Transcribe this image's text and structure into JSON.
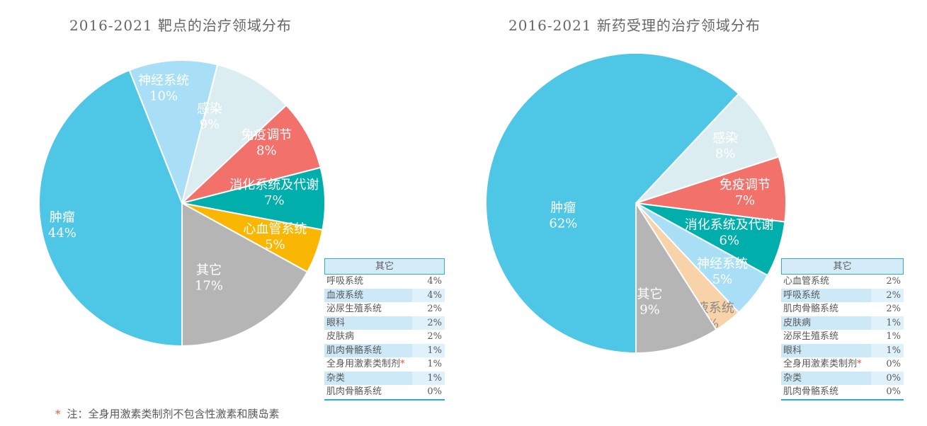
{
  "footnote": {
    "marker": "*",
    "text": "注：全身用激素类制剂不包含性激素和胰岛素"
  },
  "colors": {
    "accent_blue": "#29ABE2",
    "table_header_fill": "#D6EBF8",
    "table_alt_row": "#CDE8F7",
    "table_alt_value_cell": "#DFF1FB",
    "title_text": "#666666",
    "body_text": "#595959",
    "note_red": "#F0503C",
    "slice_oncology": "#4EC6E5",
    "slice_nervous": "#A9DFF6",
    "slice_infection": "#DCEDF2",
    "slice_immune": "#F3716B",
    "slice_digestive": "#00AFAB",
    "slice_cardio": "#F9B603",
    "slice_blood": "#F8D2A8",
    "slice_other": "#B5B5B5"
  },
  "chart_data": [
    {
      "type": "pie",
      "title": "2016-2021 靶点的治疗领域分布",
      "unit": "%",
      "start_angle_deg": 180,
      "direction": "clockwise",
      "slices": [
        {
          "label": "肿瘤",
          "value": 44,
          "color": "#4EC6E5",
          "label_color": "#FFFFFF",
          "label_angle_deg": 260,
          "label_r": 0.85
        },
        {
          "label": "神经系统",
          "value": 10,
          "color": "#A9DFF6",
          "label_color": "#FFFFFF",
          "label_angle_deg": 351,
          "label_r": 0.82
        },
        {
          "label": "感染",
          "value": 9,
          "color": "#DCEDF2",
          "label_color": "#FFFFFF",
          "label_angle_deg": 17.5,
          "label_r": 0.64
        },
        {
          "label": "免疫调节",
          "value": 8,
          "color": "#F3716B",
          "label_color": "#FFFFFF",
          "label_angle_deg": 54,
          "label_r": 0.73
        },
        {
          "label": "消化系统及代谢",
          "value": 7,
          "color": "#00AFAB",
          "label_color": "#FFFFFF",
          "label_angle_deg": 83,
          "label_r": 0.65
        },
        {
          "label": "心血管系统",
          "value": 5,
          "color": "#F9B603",
          "label_color": "#FFFFFF",
          "label_angle_deg": 109.5,
          "label_r": 0.69
        },
        {
          "label": "其它",
          "value": 17,
          "color": "#B5B5B5",
          "label_color": "#FFFFFF",
          "label_angle_deg": 160,
          "label_r": 0.55
        }
      ],
      "others_table": {
        "header": "其它",
        "rows": [
          {
            "label": "呼吸系统",
            "value": 4,
            "starred": false
          },
          {
            "label": "血液系统",
            "value": 4,
            "starred": false
          },
          {
            "label": "泌尿生殖系统",
            "value": 2,
            "starred": false
          },
          {
            "label": "眼科",
            "value": 2,
            "starred": false
          },
          {
            "label": "皮肤病",
            "value": 2,
            "starred": false
          },
          {
            "label": "肌肉骨骼系统",
            "value": 1,
            "starred": false
          },
          {
            "label": "全身用激素类制剂",
            "value": 1,
            "starred": true
          },
          {
            "label": "杂类",
            "value": 1,
            "starred": false
          },
          {
            "label": "肌肉骨骼系统",
            "value": 0,
            "starred": false
          }
        ]
      }
    },
    {
      "type": "pie",
      "title": "2016-2021 新药受理的治疗领域分布",
      "unit": "%",
      "start_angle_deg": 180,
      "direction": "clockwise",
      "slices": [
        {
          "label": "肿瘤",
          "value": 62,
          "color": "#4EC6E5",
          "label_color": "#FFFFFF",
          "label_angle_deg": 261,
          "label_r": 0.49
        },
        {
          "label": "感染",
          "value": 8,
          "color": "#DCEDF2",
          "label_color": "#FFFFFF",
          "label_angle_deg": 57,
          "label_r": 0.71
        },
        {
          "label": "免疫调节",
          "value": 7,
          "color": "#F3716B",
          "label_color": "#FFFFFF",
          "label_angle_deg": 84,
          "label_r": 0.73
        },
        {
          "label": "消化系统及代谢",
          "value": 6,
          "color": "#00AFAB",
          "label_color": "#FFFFFF",
          "label_angle_deg": 107,
          "label_r": 0.65
        },
        {
          "label": "神经系统",
          "value": 5,
          "color": "#A9DFF6",
          "label_color": "#FFFFFF",
          "label_angle_deg": 128,
          "label_r": 0.73
        },
        {
          "label": "血液系统",
          "value": 3,
          "color": "#F8D2A8",
          "label_color": "#8A8A8A",
          "label_angle_deg": 147,
          "label_r": 0.89
        },
        {
          "label": "其它",
          "value": 9,
          "color": "#B5B5B5",
          "label_color": "#FFFFFF",
          "label_angle_deg": 172,
          "label_r": 0.66
        }
      ],
      "others_table": {
        "header": "其它",
        "rows": [
          {
            "label": "心血管系统",
            "value": 2,
            "starred": false
          },
          {
            "label": "呼吸系统",
            "value": 2,
            "starred": false
          },
          {
            "label": "肌肉骨骼系统",
            "value": 2,
            "starred": false
          },
          {
            "label": "皮肤病",
            "value": 1,
            "starred": false
          },
          {
            "label": "泌尿生殖系统",
            "value": 1,
            "starred": false
          },
          {
            "label": "眼科",
            "value": 1,
            "starred": false
          },
          {
            "label": "全身用激素类制剂",
            "value": 0,
            "starred": true
          },
          {
            "label": "杂类",
            "value": 0,
            "starred": false
          },
          {
            "label": "肌肉骨骼系统",
            "value": 0,
            "starred": false
          }
        ]
      }
    }
  ]
}
